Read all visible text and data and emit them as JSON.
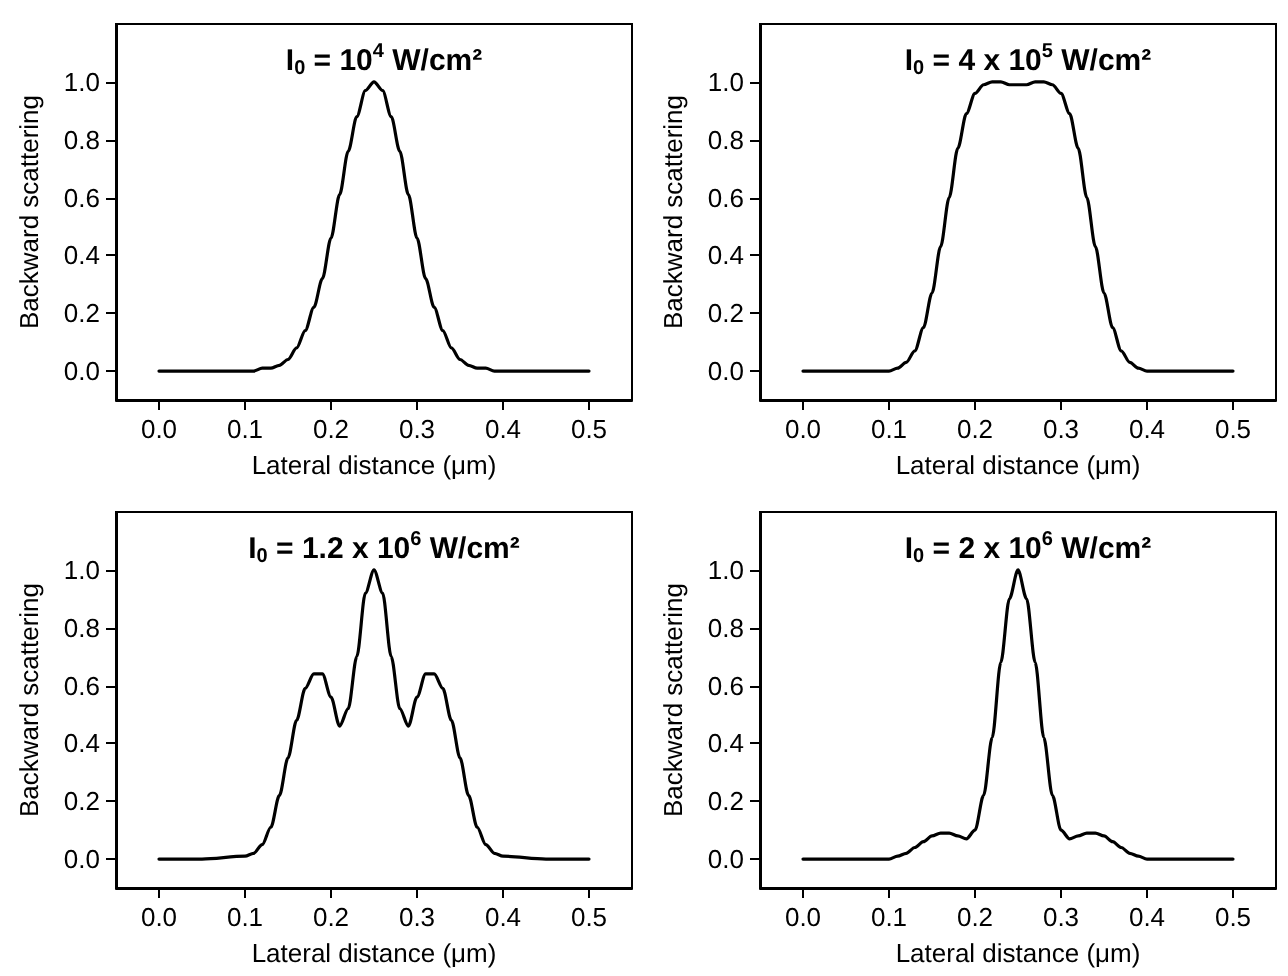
{
  "chart_data": [
    {
      "type": "line",
      "title": "I$_{0}$ = 10$^{4}$ W/cm²",
      "xlabel": "Lateral distance (μm)",
      "ylabel": "Backward scattering",
      "x": [
        0,
        0.05,
        0.1,
        0.11,
        0.12,
        0.13,
        0.14,
        0.15,
        0.16,
        0.17,
        0.18,
        0.19,
        0.2,
        0.21,
        0.22,
        0.23,
        0.24,
        0.25,
        0.26,
        0.27,
        0.28,
        0.29,
        0.3,
        0.31,
        0.32,
        0.33,
        0.34,
        0.35,
        0.36,
        0.37,
        0.38,
        0.39,
        0.4,
        0.45,
        0.5
      ],
      "series": [
        {
          "color": "#000000",
          "values": [
            0,
            0,
            0,
            0,
            0.01,
            0.01,
            0.02,
            0.04,
            0.08,
            0.14,
            0.22,
            0.32,
            0.46,
            0.61,
            0.76,
            0.88,
            0.97,
            1.0,
            0.97,
            0.88,
            0.76,
            0.61,
            0.46,
            0.32,
            0.22,
            0.14,
            0.08,
            0.04,
            0.02,
            0.01,
            0.01,
            0,
            0,
            0,
            0
          ]
        }
      ],
      "xlim": [
        -0.05,
        0.55
      ],
      "ylim": [
        -0.1,
        1.2
      ],
      "xticks": [
        {
          "value": 0,
          "label": "0.0"
        },
        {
          "value": 0.1,
          "label": "0.1"
        },
        {
          "value": 0.2,
          "label": "0.2"
        },
        {
          "value": 0.3,
          "label": "0.3"
        },
        {
          "value": 0.4,
          "label": "0.4"
        },
        {
          "value": 0.5,
          "label": "0.5"
        }
      ],
      "yticks": [
        {
          "value": 0,
          "label": "0.0"
        },
        {
          "value": 0.2,
          "label": "0.2"
        },
        {
          "value": 0.4,
          "label": "0.4"
        },
        {
          "value": 0.6,
          "label": "0.6"
        },
        {
          "value": 0.8,
          "label": "0.8"
        },
        {
          "value": 1,
          "label": "1.0"
        }
      ]
    },
    {
      "type": "line",
      "title": "I$_{0}$ = 4 x 10$^{5}$ W/cm²",
      "xlabel": "Lateral distance (μm)",
      "ylabel": "Backward scattering",
      "x": [
        0,
        0.05,
        0.1,
        0.11,
        0.12,
        0.13,
        0.14,
        0.15,
        0.16,
        0.17,
        0.18,
        0.19,
        0.2,
        0.21,
        0.22,
        0.23,
        0.24,
        0.25,
        0.26,
        0.27,
        0.28,
        0.29,
        0.3,
        0.31,
        0.32,
        0.33,
        0.34,
        0.35,
        0.36,
        0.37,
        0.38,
        0.39,
        0.4,
        0.45,
        0.5
      ],
      "series": [
        {
          "color": "#000000",
          "values": [
            0,
            0,
            0,
            0.01,
            0.03,
            0.07,
            0.15,
            0.27,
            0.43,
            0.6,
            0.77,
            0.89,
            0.96,
            0.99,
            1.0,
            1.0,
            0.99,
            0.99,
            0.99,
            1.0,
            1.0,
            0.99,
            0.96,
            0.89,
            0.77,
            0.6,
            0.43,
            0.27,
            0.15,
            0.07,
            0.03,
            0.01,
            0,
            0,
            0
          ]
        }
      ],
      "xlim": [
        -0.05,
        0.55
      ],
      "ylim": [
        -0.1,
        1.2
      ],
      "xticks": [
        {
          "value": 0,
          "label": "0.0"
        },
        {
          "value": 0.1,
          "label": "0.1"
        },
        {
          "value": 0.2,
          "label": "0.2"
        },
        {
          "value": 0.3,
          "label": "0.3"
        },
        {
          "value": 0.4,
          "label": "0.4"
        },
        {
          "value": 0.5,
          "label": "0.5"
        }
      ],
      "yticks": [
        {
          "value": 0,
          "label": "0.0"
        },
        {
          "value": 0.2,
          "label": "0.2"
        },
        {
          "value": 0.4,
          "label": "0.4"
        },
        {
          "value": 0.6,
          "label": "0.6"
        },
        {
          "value": 0.8,
          "label": "0.8"
        },
        {
          "value": 1,
          "label": "1.0"
        }
      ]
    },
    {
      "type": "line",
      "title": "I$_{0}$ = 1.2 x 10$^{6}$ W/cm²",
      "xlabel": "Lateral distance (μm)",
      "ylabel": "Backward scattering",
      "x": [
        0,
        0.05,
        0.1,
        0.11,
        0.12,
        0.13,
        0.14,
        0.15,
        0.16,
        0.17,
        0.18,
        0.19,
        0.2,
        0.21,
        0.22,
        0.23,
        0.24,
        0.25,
        0.26,
        0.27,
        0.28,
        0.29,
        0.3,
        0.31,
        0.32,
        0.33,
        0.34,
        0.35,
        0.36,
        0.37,
        0.38,
        0.39,
        0.4,
        0.45,
        0.5
      ],
      "series": [
        {
          "color": "#000000",
          "values": [
            0,
            0,
            0.01,
            0.02,
            0.05,
            0.11,
            0.22,
            0.35,
            0.48,
            0.59,
            0.64,
            0.64,
            0.56,
            0.46,
            0.52,
            0.7,
            0.92,
            1.0,
            0.92,
            0.7,
            0.52,
            0.46,
            0.56,
            0.64,
            0.64,
            0.59,
            0.48,
            0.35,
            0.22,
            0.11,
            0.05,
            0.02,
            0.01,
            0,
            0
          ]
        }
      ],
      "xlim": [
        -0.05,
        0.55
      ],
      "ylim": [
        -0.1,
        1.2
      ],
      "xticks": [
        {
          "value": 0,
          "label": "0.0"
        },
        {
          "value": 0.1,
          "label": "0.1"
        },
        {
          "value": 0.2,
          "label": "0.2"
        },
        {
          "value": 0.3,
          "label": "0.3"
        },
        {
          "value": 0.4,
          "label": "0.4"
        },
        {
          "value": 0.5,
          "label": "0.5"
        }
      ],
      "yticks": [
        {
          "value": 0,
          "label": "0.0"
        },
        {
          "value": 0.2,
          "label": "0.2"
        },
        {
          "value": 0.4,
          "label": "0.4"
        },
        {
          "value": 0.6,
          "label": "0.6"
        },
        {
          "value": 0.8,
          "label": "0.8"
        },
        {
          "value": 1,
          "label": "1.0"
        }
      ]
    },
    {
      "type": "line",
      "title": "I$_{0}$ = 2 x 10$^{6}$ W/cm²",
      "xlabel": "Lateral distance (μm)",
      "ylabel": "Backward scattering",
      "x": [
        0,
        0.05,
        0.1,
        0.11,
        0.12,
        0.13,
        0.14,
        0.15,
        0.16,
        0.17,
        0.18,
        0.19,
        0.2,
        0.21,
        0.22,
        0.23,
        0.24,
        0.25,
        0.26,
        0.27,
        0.28,
        0.29,
        0.3,
        0.31,
        0.32,
        0.33,
        0.34,
        0.35,
        0.36,
        0.37,
        0.38,
        0.39,
        0.4,
        0.45,
        0.5
      ],
      "series": [
        {
          "color": "#000000",
          "values": [
            0,
            0,
            0,
            0.01,
            0.02,
            0.04,
            0.06,
            0.08,
            0.09,
            0.09,
            0.08,
            0.07,
            0.1,
            0.22,
            0.42,
            0.68,
            0.9,
            1.0,
            0.9,
            0.68,
            0.42,
            0.22,
            0.1,
            0.07,
            0.08,
            0.09,
            0.09,
            0.08,
            0.06,
            0.04,
            0.02,
            0.01,
            0,
            0,
            0
          ]
        }
      ],
      "xlim": [
        -0.05,
        0.55
      ],
      "ylim": [
        -0.1,
        1.2
      ],
      "xticks": [
        {
          "value": 0,
          "label": "0.0"
        },
        {
          "value": 0.1,
          "label": "0.1"
        },
        {
          "value": 0.2,
          "label": "0.2"
        },
        {
          "value": 0.3,
          "label": "0.3"
        },
        {
          "value": 0.4,
          "label": "0.4"
        },
        {
          "value": 0.5,
          "label": "0.5"
        }
      ],
      "yticks": [
        {
          "value": 0,
          "label": "0.0"
        },
        {
          "value": 0.2,
          "label": "0.2"
        },
        {
          "value": 0.4,
          "label": "0.4"
        },
        {
          "value": 0.6,
          "label": "0.6"
        },
        {
          "value": 0.8,
          "label": "0.8"
        },
        {
          "value": 1,
          "label": "1.0"
        }
      ]
    }
  ]
}
